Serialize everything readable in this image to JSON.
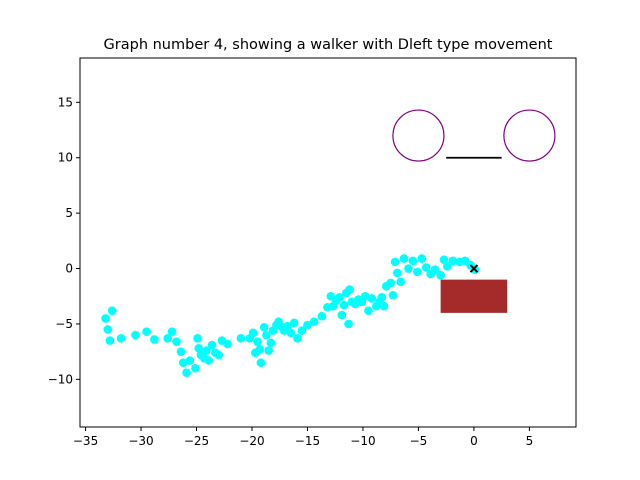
{
  "chart_data": {
    "type": "scatter",
    "title": "Graph number 4, showing a walker with Dleft type movement",
    "xlabel": "",
    "ylabel": "",
    "xlim": [
      -35.5,
      9.2
    ],
    "ylim": [
      -14.3,
      19.0
    ],
    "x_ticks": [
      -35,
      -30,
      -25,
      -20,
      -15,
      -10,
      -5,
      0,
      5
    ],
    "y_ticks": [
      -10,
      -5,
      0,
      5,
      10,
      15
    ],
    "grid": false,
    "legend": "none",
    "colors": {
      "walker": "#00ffff",
      "current_position": "#000000",
      "rectangle": "#a52a2a",
      "circles": "#800080",
      "segment": "#000000"
    },
    "walker_points": [
      [
        -33.2,
        -4.5
      ],
      [
        -33.0,
        -5.5
      ],
      [
        -32.8,
        -6.5
      ],
      [
        -32.6,
        -3.8
      ],
      [
        -31.8,
        -6.3
      ],
      [
        -30.5,
        -6.0
      ],
      [
        -29.5,
        -5.7
      ],
      [
        -28.8,
        -6.4
      ],
      [
        -27.6,
        -6.3
      ],
      [
        -27.2,
        -5.7
      ],
      [
        -26.8,
        -6.6
      ],
      [
        -26.4,
        -7.5
      ],
      [
        -26.2,
        -8.5
      ],
      [
        -25.9,
        -9.4
      ],
      [
        -25.6,
        -8.3
      ],
      [
        -25.1,
        -9.0
      ],
      [
        -24.9,
        -6.3
      ],
      [
        -24.8,
        -7.2
      ],
      [
        -24.6,
        -7.8
      ],
      [
        -24.3,
        -8.1
      ],
      [
        -24.1,
        -7.4
      ],
      [
        -23.9,
        -8.3
      ],
      [
        -23.6,
        -6.9
      ],
      [
        -23.3,
        -7.6
      ],
      [
        -23.0,
        -7.8
      ],
      [
        -22.7,
        -6.5
      ],
      [
        -22.2,
        -6.8
      ],
      [
        -21.0,
        -6.3
      ],
      [
        -20.2,
        -6.3
      ],
      [
        -19.9,
        -5.8
      ],
      [
        -19.7,
        -7.6
      ],
      [
        -19.5,
        -6.6
      ],
      [
        -19.3,
        -7.3
      ],
      [
        -19.2,
        -8.5
      ],
      [
        -18.9,
        -5.3
      ],
      [
        -18.7,
        -6.0
      ],
      [
        -18.5,
        -7.4
      ],
      [
        -18.3,
        -6.7
      ],
      [
        -18.1,
        -5.6
      ],
      [
        -17.8,
        -5.1
      ],
      [
        -17.6,
        -4.8
      ],
      [
        -17.3,
        -5.3
      ],
      [
        -17.1,
        -5.6
      ],
      [
        -16.8,
        -5.2
      ],
      [
        -16.5,
        -5.8
      ],
      [
        -16.2,
        -4.9
      ],
      [
        -15.9,
        -6.3
      ],
      [
        -15.5,
        -5.6
      ],
      [
        -15.0,
        -5.1
      ],
      [
        -14.4,
        -4.8
      ],
      [
        -13.7,
        -4.3
      ],
      [
        -13.2,
        -3.5
      ],
      [
        -12.9,
        -2.5
      ],
      [
        -12.7,
        -3.4
      ],
      [
        -12.4,
        -2.9
      ],
      [
        -12.1,
        -2.6
      ],
      [
        -11.9,
        -4.2
      ],
      [
        -11.7,
        -3.3
      ],
      [
        -11.5,
        -2.2
      ],
      [
        -11.3,
        -5.0
      ],
      [
        -11.2,
        -1.9
      ],
      [
        -11.0,
        -3.0
      ],
      [
        -10.7,
        -3.2
      ],
      [
        -10.4,
        -2.8
      ],
      [
        -10.1,
        -3.0
      ],
      [
        -9.8,
        -2.5
      ],
      [
        -9.5,
        -3.8
      ],
      [
        -9.2,
        -2.7
      ],
      [
        -8.8,
        -3.4
      ],
      [
        -8.5,
        -3.0
      ],
      [
        -8.3,
        -2.6
      ],
      [
        -8.1,
        -3.4
      ],
      [
        -7.9,
        -1.6
      ],
      [
        -7.5,
        -1.3
      ],
      [
        -7.3,
        -2.4
      ],
      [
        -7.1,
        0.6
      ],
      [
        -6.9,
        -0.4
      ],
      [
        -6.6,
        -1.2
      ],
      [
        -6.3,
        0.9
      ],
      [
        -5.9,
        0.0
      ],
      [
        -5.5,
        0.7
      ],
      [
        -5.1,
        -0.3
      ],
      [
        -4.7,
        0.9
      ],
      [
        -4.3,
        0.1
      ],
      [
        -3.9,
        -0.5
      ],
      [
        -3.5,
        -0.1
      ],
      [
        -3.0,
        -0.6
      ],
      [
        -2.7,
        0.8
      ],
      [
        -2.4,
        0.2
      ],
      [
        -1.9,
        0.7
      ],
      [
        -1.3,
        0.6
      ],
      [
        -0.8,
        0.7
      ],
      [
        -0.3,
        0.3
      ],
      [
        0.1,
        -0.1
      ]
    ],
    "current_position": [
      0,
      0
    ],
    "rectangle": {
      "x": [
        -3,
        3
      ],
      "y": [
        -4,
        -1
      ]
    },
    "circles": [
      {
        "center": [
          -5,
          12
        ],
        "radius": 2.3
      },
      {
        "center": [
          5,
          12
        ],
        "radius": 2.3
      }
    ],
    "segment": {
      "x": [
        -2.5,
        2.5
      ],
      "y": [
        10,
        10
      ]
    }
  }
}
